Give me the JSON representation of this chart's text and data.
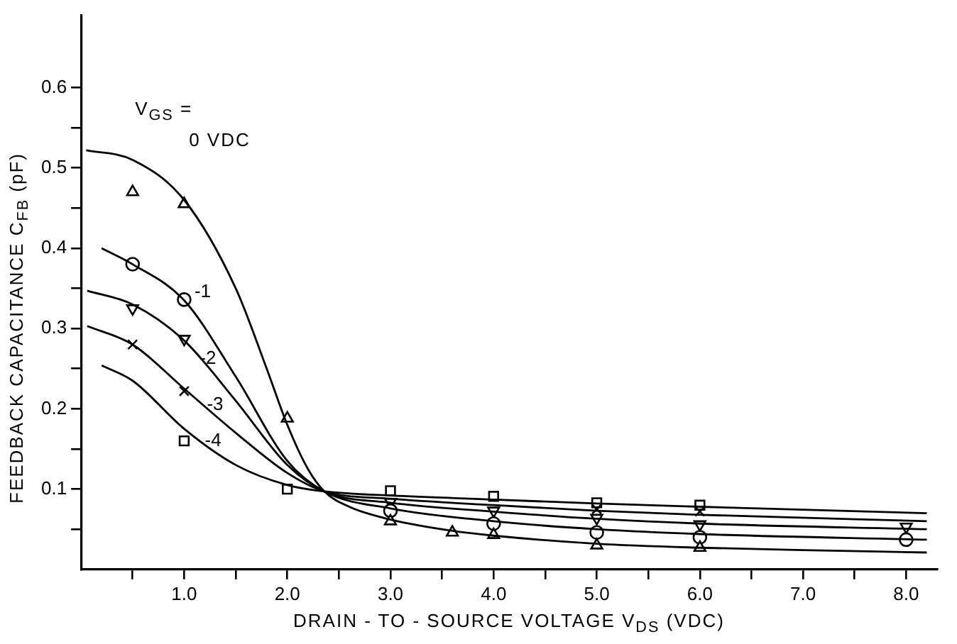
{
  "chart_data": {
    "type": "line",
    "xlabel": "DRAIN - TO - SOURCE VOLTAGE V$_{DS}$ (VDC)",
    "ylabel": "FEEDBACK CAPACITANCE C$_{FB}$ (pF)",
    "xlim": [
      0,
      8.3
    ],
    "xticks": [
      {
        "value": 0.5,
        "label": null
      },
      {
        "value": 1,
        "label": "1.0"
      },
      {
        "value": 1.5,
        "label": null
      },
      {
        "value": 2,
        "label": "2.0"
      },
      {
        "value": 2.5,
        "label": null
      },
      {
        "value": 3,
        "label": "3.0"
      },
      {
        "value": 3.5,
        "label": null
      },
      {
        "value": 4,
        "label": "4.0"
      },
      {
        "value": 4.5,
        "label": null
      },
      {
        "value": 5,
        "label": "5.0"
      },
      {
        "value": 5.5,
        "label": null
      },
      {
        "value": 6,
        "label": "6.0"
      },
      {
        "value": 6.5,
        "label": null
      },
      {
        "value": 7,
        "label": "7.0"
      },
      {
        "value": 7.5,
        "label": null
      },
      {
        "value": 8,
        "label": "8.0"
      }
    ],
    "ylim": [
      0,
      0.69
    ],
    "yticks": [
      {
        "value": 0.05,
        "label": null
      },
      {
        "value": 0.1,
        "label": "0.1"
      },
      {
        "value": 0.15,
        "label": null
      },
      {
        "value": 0.2,
        "label": "0.2"
      },
      {
        "value": 0.25,
        "label": null
      },
      {
        "value": 0.3,
        "label": "0.3"
      },
      {
        "value": 0.35,
        "label": null
      },
      {
        "value": 0.4,
        "label": "0.4"
      },
      {
        "value": 0.45,
        "label": null
      },
      {
        "value": 0.5,
        "label": "0.5"
      },
      {
        "value": 0.55,
        "label": null
      },
      {
        "value": 0.6,
        "label": "0.6"
      }
    ],
    "grid": false,
    "legend": false,
    "line_style": "solid",
    "annotations": [
      "V$_{GS}$ =",
      "0 VDC",
      {
        "text": "-1",
        "x": 1.1,
        "y": 0.345
      },
      {
        "text": "-2",
        "x": 1.15,
        "y": 0.262
      },
      {
        "text": "-3",
        "x": 1.22,
        "y": 0.205
      },
      {
        "text": "-4",
        "x": 1.2,
        "y": 0.16
      }
    ],
    "series": [
      {
        "color": "#000000",
        "marker": "none",
        "x": [
          0.05,
          0.5,
          1.0,
          1.5,
          1.8,
          2.0,
          2.2,
          2.36,
          2.6,
          3.0,
          3.6,
          4.0,
          5.0,
          6.0,
          7.0,
          8.2
        ],
        "values": [
          0.522,
          0.51,
          0.46,
          0.35,
          0.25,
          0.18,
          0.125,
          0.097,
          0.078,
          0.062,
          0.048,
          0.042,
          0.032,
          0.027,
          0.024,
          0.021
        ]
      },
      {
        "color": "#000000",
        "marker": "none",
        "x": [
          0.2,
          0.5,
          1.0,
          1.5,
          2.0,
          2.36,
          3.0,
          4.0,
          5.0,
          6.0,
          8.2
        ],
        "values": [
          0.4,
          0.38,
          0.335,
          0.24,
          0.135,
          0.097,
          0.076,
          0.06,
          0.05,
          0.044,
          0.037
        ]
      },
      {
        "color": "#000000",
        "marker": "none",
        "x": [
          0.06,
          0.5,
          1.0,
          1.5,
          2.0,
          2.36,
          3.0,
          4.0,
          5.0,
          6.0,
          8.2
        ],
        "values": [
          0.347,
          0.33,
          0.285,
          0.21,
          0.13,
          0.097,
          0.083,
          0.072,
          0.063,
          0.057,
          0.05
        ]
      },
      {
        "color": "#000000",
        "marker": "none",
        "x": [
          0.06,
          0.5,
          1.0,
          1.5,
          2.0,
          2.36,
          3.0,
          4.0,
          5.0,
          6.0,
          8.2
        ],
        "values": [
          0.303,
          0.28,
          0.225,
          0.17,
          0.12,
          0.097,
          0.088,
          0.08,
          0.073,
          0.068,
          0.06
        ]
      },
      {
        "color": "#000000",
        "marker": "none",
        "x": [
          0.2,
          0.5,
          1.0,
          1.5,
          2.0,
          2.36,
          3.0,
          4.0,
          5.0,
          6.0,
          8.2
        ],
        "values": [
          0.254,
          0.235,
          0.175,
          0.13,
          0.105,
          0.097,
          0.092,
          0.087,
          0.082,
          0.078,
          0.07
        ]
      },
      {
        "type": "scatter",
        "color": "#000000",
        "marker": "triangle",
        "x": [
          0.5,
          1.0,
          2.0,
          3.0,
          3.6,
          4.0,
          5.0,
          6.0
        ],
        "values": [
          0.47,
          0.455,
          0.188,
          0.06,
          0.046,
          0.043,
          0.03,
          0.027
        ]
      },
      {
        "type": "scatter",
        "color": "#000000",
        "marker": "circle",
        "x": [
          0.5,
          1.0,
          3.0,
          4.0,
          5.0,
          6.0,
          8.0
        ],
        "values": [
          0.38,
          0.336,
          0.073,
          0.057,
          0.046,
          0.04,
          0.037
        ]
      },
      {
        "type": "scatter",
        "color": "#000000",
        "marker": "triangle-down",
        "x": [
          0.5,
          1.0,
          3.0,
          4.0,
          5.0,
          6.0,
          8.0
        ],
        "values": [
          0.325,
          0.287,
          0.084,
          0.073,
          0.064,
          0.056,
          0.053
        ]
      },
      {
        "type": "scatter",
        "color": "#000000",
        "marker": "cross",
        "x": [
          0.5,
          1.0,
          3.0,
          4.0,
          5.0,
          6.0
        ],
        "values": [
          0.28,
          0.222,
          null,
          null,
          0.075,
          0.072
        ]
      },
      {
        "type": "scatter",
        "color": "#000000",
        "marker": "square",
        "x": [
          1.0,
          2.0,
          3.0,
          4.0,
          5.0,
          6.0
        ],
        "values": [
          0.16,
          0.1,
          0.098,
          0.091,
          0.083,
          0.08
        ]
      }
    ]
  }
}
